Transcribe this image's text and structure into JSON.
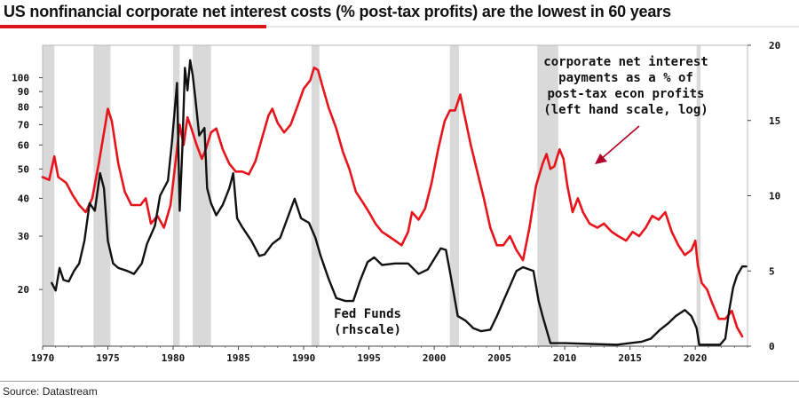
{
  "header": {
    "title": "US nonfinancial corporate net interest costs (% post-tax profits) are the lowest in 60 years"
  },
  "footer": {
    "source": "Source: Datastream"
  },
  "colors": {
    "interest_series": "#e8141c",
    "fed_funds_series": "#111111",
    "recession_shading": "#d9d9d9",
    "accent_rule": "#d9141a"
  },
  "chart_data": {
    "type": "line",
    "title": "US nonfinancial corporate net interest costs (% post-tax profits) are the lowest in 60 years",
    "grid": false,
    "x_axis": {
      "range": [
        1970,
        2024
      ],
      "ticks": [
        "1970",
        "1975",
        "1980",
        "1985",
        "1990",
        "1995",
        "2000",
        "2005",
        "2010",
        "2015",
        "2020"
      ]
    },
    "y_left": {
      "scale": "log",
      "range": [
        13,
        128
      ],
      "ticks": [
        20,
        30,
        40,
        50,
        60,
        70,
        80,
        90,
        100
      ],
      "tick_labels": [
        "20",
        "30",
        "40",
        "50",
        "60",
        "70",
        "80",
        "90",
        "100"
      ]
    },
    "y_right": {
      "scale": "linear",
      "range": [
        0,
        20
      ],
      "ticks": [
        0,
        5,
        10,
        15,
        20
      ],
      "tick_labels": [
        "0",
        "5",
        "10",
        "15",
        "20"
      ]
    },
    "recessions": [
      [
        1970.0,
        1970.9
      ],
      [
        1973.9,
        1975.2
      ],
      [
        1980.0,
        1980.5
      ],
      [
        1981.5,
        1982.9
      ],
      [
        1990.6,
        1991.2
      ],
      [
        2001.2,
        2001.9
      ],
      [
        2007.9,
        2009.5
      ],
      [
        2020.1,
        2020.4
      ]
    ],
    "annotations": [
      {
        "lines": [
          "corporate net interest",
          "payments as a % of",
          "post-tax econ profits",
          "(left hand scale, log)"
        ]
      },
      {
        "lines": [
          "Fed Funds",
          "(rhscale)"
        ]
      }
    ],
    "series": [
      {
        "key": "interest",
        "axis": "left",
        "color": "#e8141c",
        "points": [
          [
            1970,
            47
          ],
          [
            1970.5,
            46
          ],
          [
            1970.9,
            55
          ],
          [
            1971.2,
            47
          ],
          [
            1971.8,
            45
          ],
          [
            1972.3,
            41
          ],
          [
            1972.8,
            38
          ],
          [
            1973.3,
            36
          ],
          [
            1973.8,
            40
          ],
          [
            1974.3,
            52
          ],
          [
            1974.8,
            70
          ],
          [
            1975.0,
            79
          ],
          [
            1975.3,
            72
          ],
          [
            1975.8,
            52
          ],
          [
            1976.3,
            42
          ],
          [
            1976.8,
            38
          ],
          [
            1977.5,
            38
          ],
          [
            1977.9,
            40
          ],
          [
            1978.3,
            33
          ],
          [
            1978.8,
            35
          ],
          [
            1979.3,
            32
          ],
          [
            1979.8,
            38
          ],
          [
            1980.3,
            58
          ],
          [
            1980.5,
            70
          ],
          [
            1980.8,
            60
          ],
          [
            1981.1,
            74
          ],
          [
            1981.4,
            68
          ],
          [
            1981.8,
            60
          ],
          [
            1982.2,
            54
          ],
          [
            1982.5,
            58
          ],
          [
            1982.9,
            66
          ],
          [
            1983.3,
            68
          ],
          [
            1983.8,
            58
          ],
          [
            1984.3,
            52
          ],
          [
            1984.8,
            49
          ],
          [
            1985.3,
            49
          ],
          [
            1985.8,
            48
          ],
          [
            1986.3,
            53
          ],
          [
            1986.8,
            63
          ],
          [
            1987.3,
            75
          ],
          [
            1987.6,
            79
          ],
          [
            1988.0,
            71
          ],
          [
            1988.5,
            66
          ],
          [
            1989.0,
            70
          ],
          [
            1989.5,
            80
          ],
          [
            1990.0,
            92
          ],
          [
            1990.5,
            98
          ],
          [
            1990.8,
            108
          ],
          [
            1991.1,
            106
          ],
          [
            1991.4,
            95
          ],
          [
            1991.9,
            80
          ],
          [
            1992.5,
            68
          ],
          [
            1993.0,
            57
          ],
          [
            1993.5,
            50
          ],
          [
            1994.0,
            42
          ],
          [
            1994.5,
            39
          ],
          [
            1995.0,
            36
          ],
          [
            1995.5,
            33
          ],
          [
            1996.0,
            31
          ],
          [
            1996.5,
            30
          ],
          [
            1997.0,
            29
          ],
          [
            1997.5,
            28
          ],
          [
            1998.0,
            31
          ],
          [
            1998.3,
            36
          ],
          [
            1998.8,
            34
          ],
          [
            1999.3,
            37
          ],
          [
            1999.8,
            45
          ],
          [
            2000.3,
            58
          ],
          [
            2000.8,
            72
          ],
          [
            2001.2,
            78
          ],
          [
            2001.6,
            78
          ],
          [
            2002.0,
            88
          ],
          [
            2002.3,
            76
          ],
          [
            2002.8,
            60
          ],
          [
            2003.3,
            49
          ],
          [
            2003.8,
            40
          ],
          [
            2004.3,
            32
          ],
          [
            2004.8,
            28
          ],
          [
            2005.3,
            28
          ],
          [
            2005.8,
            30
          ],
          [
            2006.3,
            27
          ],
          [
            2006.8,
            25
          ],
          [
            2007.3,
            32
          ],
          [
            2007.8,
            44
          ],
          [
            2008.3,
            52
          ],
          [
            2008.6,
            56
          ],
          [
            2008.9,
            50
          ],
          [
            2009.2,
            51
          ],
          [
            2009.6,
            58
          ],
          [
            2009.9,
            54
          ],
          [
            2010.2,
            44
          ],
          [
            2010.6,
            36
          ],
          [
            2011.0,
            40
          ],
          [
            2011.4,
            36
          ],
          [
            2011.9,
            33
          ],
          [
            2012.5,
            32
          ],
          [
            2013.0,
            33
          ],
          [
            2013.6,
            31
          ],
          [
            2014.1,
            30
          ],
          [
            2014.7,
            29
          ],
          [
            2015.2,
            31
          ],
          [
            2015.7,
            30
          ],
          [
            2016.2,
            32
          ],
          [
            2016.7,
            35
          ],
          [
            2017.2,
            34
          ],
          [
            2017.7,
            36
          ],
          [
            2018.2,
            31
          ],
          [
            2018.7,
            28
          ],
          [
            2019.2,
            26
          ],
          [
            2019.7,
            27
          ],
          [
            2020.0,
            29
          ],
          [
            2020.2,
            24
          ],
          [
            2020.5,
            21
          ],
          [
            2020.9,
            20
          ],
          [
            2021.3,
            18
          ],
          [
            2021.8,
            16
          ],
          [
            2022.3,
            16
          ],
          [
            2022.8,
            17
          ],
          [
            2023.2,
            15
          ],
          [
            2023.6,
            14
          ]
        ]
      },
      {
        "key": "fed_funds",
        "axis": "right",
        "color": "#111111",
        "points": [
          [
            1970.7,
            4.2
          ],
          [
            1971.0,
            3.7
          ],
          [
            1971.3,
            5.2
          ],
          [
            1971.6,
            4.4
          ],
          [
            1972.0,
            4.3
          ],
          [
            1972.4,
            5.0
          ],
          [
            1972.8,
            5.5
          ],
          [
            1973.2,
            7.0
          ],
          [
            1973.6,
            9.5
          ],
          [
            1974.0,
            9.0
          ],
          [
            1974.4,
            11.5
          ],
          [
            1974.7,
            10.5
          ],
          [
            1975.0,
            7.0
          ],
          [
            1975.4,
            5.5
          ],
          [
            1975.8,
            5.2
          ],
          [
            1976.5,
            5.0
          ],
          [
            1977.0,
            4.8
          ],
          [
            1977.6,
            5.5
          ],
          [
            1978.0,
            6.8
          ],
          [
            1978.6,
            8.0
          ],
          [
            1979.0,
            10.0
          ],
          [
            1979.6,
            11.0
          ],
          [
            1979.9,
            13.5
          ],
          [
            1980.3,
            17.5
          ],
          [
            1980.5,
            9.0
          ],
          [
            1980.7,
            13.0
          ],
          [
            1980.9,
            18.5
          ],
          [
            1981.1,
            17.0
          ],
          [
            1981.3,
            19.0
          ],
          [
            1981.5,
            18.0
          ],
          [
            1981.7,
            16.5
          ],
          [
            1982.0,
            14.0
          ],
          [
            1982.4,
            14.5
          ],
          [
            1982.6,
            10.5
          ],
          [
            1982.9,
            9.5
          ],
          [
            1983.3,
            8.7
          ],
          [
            1983.8,
            9.4
          ],
          [
            1984.3,
            10.5
          ],
          [
            1984.6,
            11.5
          ],
          [
            1984.9,
            8.5
          ],
          [
            1985.3,
            7.9
          ],
          [
            1986.0,
            7.0
          ],
          [
            1986.6,
            6.0
          ],
          [
            1987.0,
            6.1
          ],
          [
            1987.6,
            6.8
          ],
          [
            1988.2,
            7.2
          ],
          [
            1988.8,
            8.6
          ],
          [
            1989.3,
            9.8
          ],
          [
            1989.8,
            8.5
          ],
          [
            1990.4,
            8.2
          ],
          [
            1990.9,
            7.2
          ],
          [
            1991.3,
            6.0
          ],
          [
            1991.9,
            4.5
          ],
          [
            1992.5,
            3.2
          ],
          [
            1993.2,
            3.0
          ],
          [
            1993.8,
            3.0
          ],
          [
            1994.3,
            4.3
          ],
          [
            1994.9,
            5.6
          ],
          [
            1995.4,
            5.9
          ],
          [
            1996.0,
            5.4
          ],
          [
            1997.0,
            5.5
          ],
          [
            1998.0,
            5.5
          ],
          [
            1998.8,
            4.8
          ],
          [
            1999.5,
            5.1
          ],
          [
            2000.0,
            5.8
          ],
          [
            2000.5,
            6.5
          ],
          [
            2000.9,
            6.4
          ],
          [
            2001.3,
            4.5
          ],
          [
            2001.8,
            2.0
          ],
          [
            2002.4,
            1.7
          ],
          [
            2003.0,
            1.2
          ],
          [
            2003.6,
            1.0
          ],
          [
            2004.3,
            1.1
          ],
          [
            2004.8,
            2.0
          ],
          [
            2005.3,
            3.0
          ],
          [
            2005.8,
            4.0
          ],
          [
            2006.3,
            5.0
          ],
          [
            2006.8,
            5.25
          ],
          [
            2007.6,
            5.0
          ],
          [
            2008.0,
            3.0
          ],
          [
            2008.3,
            2.0
          ],
          [
            2008.9,
            0.2
          ],
          [
            2010.0,
            0.2
          ],
          [
            2012.0,
            0.15
          ],
          [
            2014.0,
            0.1
          ],
          [
            2015.9,
            0.3
          ],
          [
            2016.6,
            0.5
          ],
          [
            2017.3,
            1.1
          ],
          [
            2017.9,
            1.5
          ],
          [
            2018.5,
            2.0
          ],
          [
            2019.2,
            2.4
          ],
          [
            2019.7,
            2.0
          ],
          [
            2020.1,
            1.2
          ],
          [
            2020.3,
            0.1
          ],
          [
            2021.0,
            0.1
          ],
          [
            2021.9,
            0.1
          ],
          [
            2022.3,
            0.5
          ],
          [
            2022.6,
            2.4
          ],
          [
            2022.9,
            3.9
          ],
          [
            2023.2,
            4.7
          ],
          [
            2023.6,
            5.3
          ],
          [
            2023.9,
            5.3
          ]
        ]
      }
    ]
  }
}
